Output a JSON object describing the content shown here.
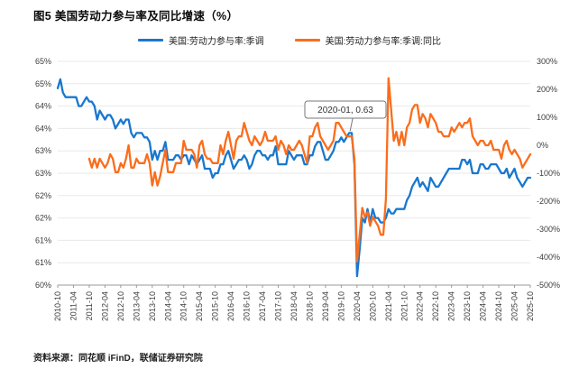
{
  "title": "图5  美国劳动力参与率及同比增速（%）",
  "source": "资料来源：同花顺 iFinD，联储证券研究院",
  "legend": [
    {
      "label": "美国:劳动力参与率:季调",
      "color": "#1977CE"
    },
    {
      "label": "美国:劳动力参与率:季调:同比",
      "color": "#FA6D1C"
    }
  ],
  "annotation": {
    "text": "2020-01, 0.63",
    "month_offset": 111
  },
  "chart_data": {
    "type": "line",
    "x_start": "2010-10",
    "x_end": "2025-10",
    "x_step_months": 1,
    "x_tick_labels": [
      "2010-10",
      "2011-04",
      "2011-10",
      "2012-04",
      "2012-10",
      "2013-04",
      "2013-10",
      "2014-04",
      "2014-10",
      "2015-04",
      "2015-10",
      "2016-04",
      "2016-10",
      "2017-04",
      "2017-10",
      "2018-04",
      "2018-10",
      "2019-04",
      "2019-10",
      "2020-04",
      "2020-10",
      "2021-04",
      "2021-10",
      "2022-04",
      "2022-10",
      "2023-04",
      "2023-10",
      "2024-04",
      "2024-10",
      "2025-04",
      "2025-10"
    ],
    "left_axis": {
      "min": 60,
      "max": 65,
      "ticks": [
        "65%",
        "65%",
        "64%",
        "64%",
        "63%",
        "63%",
        "62%",
        "62%",
        "61%",
        "61%",
        "60%"
      ]
    },
    "right_axis": {
      "min": -500,
      "max": 300,
      "ticks": [
        "300%",
        "200%",
        "100%",
        "0%",
        "-100%",
        "-200%",
        "-300%",
        "-400%",
        "-500%"
      ]
    },
    "grid": true,
    "legend_position": "top",
    "series": [
      {
        "name": "美国:劳动力参与率:季调",
        "axis": "left",
        "color": "#1977CE",
        "values": [
          64.4,
          64.6,
          64.3,
          64.2,
          64.2,
          64.2,
          64.2,
          64.2,
          64.0,
          64.0,
          64.1,
          64.2,
          64.1,
          64.1,
          64.0,
          63.7,
          63.9,
          63.8,
          63.7,
          63.8,
          63.8,
          63.7,
          63.5,
          63.6,
          63.7,
          63.6,
          63.7,
          63.7,
          63.4,
          63.3,
          63.4,
          63.4,
          63.4,
          63.3,
          63.3,
          63.2,
          62.8,
          63.0,
          62.8,
          63.0,
          63.0,
          63.2,
          62.8,
          62.8,
          62.8,
          62.9,
          62.9,
          62.8,
          62.9,
          62.9,
          62.7,
          62.9,
          62.8,
          62.7,
          62.8,
          62.9,
          62.6,
          62.6,
          62.6,
          62.4,
          62.5,
          62.5,
          62.7,
          62.7,
          62.9,
          63.0,
          62.8,
          62.6,
          62.7,
          62.8,
          62.8,
          62.9,
          62.8,
          62.6,
          62.7,
          62.9,
          63.0,
          63.0,
          62.9,
          62.9,
          62.8,
          62.9,
          62.9,
          63.1,
          62.7,
          62.7,
          62.7,
          62.7,
          63.0,
          62.9,
          62.8,
          62.9,
          62.9,
          62.9,
          62.7,
          62.7,
          62.9,
          62.9,
          63.1,
          63.2,
          63.2,
          63.0,
          62.8,
          62.8,
          62.9,
          63.0,
          63.2,
          63.2,
          63.3,
          63.2,
          63.3,
          63.4,
          63.4,
          62.7,
          60.2,
          60.8,
          61.5,
          61.4,
          61.7,
          61.4,
          61.7,
          61.5,
          61.5,
          61.4,
          61.4,
          61.5,
          61.7,
          61.6,
          61.6,
          61.7,
          61.7,
          61.7,
          61.7,
          61.9,
          62.0,
          62.2,
          62.3,
          62.4,
          62.2,
          62.3,
          62.2,
          62.1,
          62.4,
          62.3,
          62.2,
          62.2,
          62.3,
          62.4,
          62.5,
          62.6,
          62.6,
          62.6,
          62.6,
          62.6,
          62.8,
          62.8,
          62.7,
          62.8,
          62.5,
          62.5,
          62.5,
          62.7,
          62.7,
          62.6,
          62.6,
          62.7,
          62.7,
          62.7,
          62.6,
          62.5,
          62.5,
          62.6,
          62.4,
          62.5,
          62.6,
          62.4,
          62.3,
          62.2,
          62.3,
          62.4,
          62.4
        ]
      },
      {
        "name": "美国:劳动力参与率:季调:同比",
        "axis": "right",
        "color": "#FA6D1C",
        "values": [
          null,
          null,
          null,
          null,
          null,
          null,
          null,
          null,
          null,
          null,
          null,
          null,
          -48,
          -80,
          -48,
          -80,
          -48,
          -64,
          -80,
          -64,
          -32,
          -48,
          -96,
          -96,
          -64,
          -80,
          -48,
          0,
          -80,
          -80,
          -48,
          -64,
          -64,
          -64,
          -32,
          -64,
          -144,
          -96,
          -144,
          -112,
          -64,
          -16,
          -96,
          -96,
          -96,
          -64,
          -64,
          -64,
          16,
          -16,
          -16,
          -16,
          -32,
          -80,
          0,
          16,
          -32,
          -48,
          -48,
          -64,
          -64,
          -64,
          0,
          -32,
          16,
          48,
          0,
          -48,
          16,
          32,
          32,
          80,
          48,
          16,
          0,
          32,
          16,
          0,
          16,
          48,
          16,
          16,
          16,
          32,
          -16,
          16,
          0,
          -32,
          0,
          -16,
          -16,
          0,
          16,
          0,
          -32,
          -64,
          32,
          32,
          64,
          80,
          32,
          16,
          0,
          -16,
          0,
          16,
          80,
          80,
          64,
          48,
          32,
          32,
          32,
          -48,
          -415,
          -320,
          -224,
          -256,
          -240,
          -288,
          -256,
          -272,
          -288,
          -320,
          -320,
          -192,
          240,
          128,
          16,
          48,
          0,
          48,
          0,
          64,
          80,
          128,
          144,
          144,
          80,
          112,
          96,
          64,
          112,
          96,
          80,
          48,
          48,
          32,
          32,
          32,
          64,
          48,
          64,
          80,
          64,
          80,
          80,
          96,
          32,
          16,
          0,
          16,
          16,
          0,
          0,
          16,
          -16,
          -16,
          -16,
          -48,
          0,
          16,
          -16,
          -32,
          -16,
          -32,
          -48,
          -80,
          -64,
          -48,
          -32
        ]
      }
    ]
  }
}
